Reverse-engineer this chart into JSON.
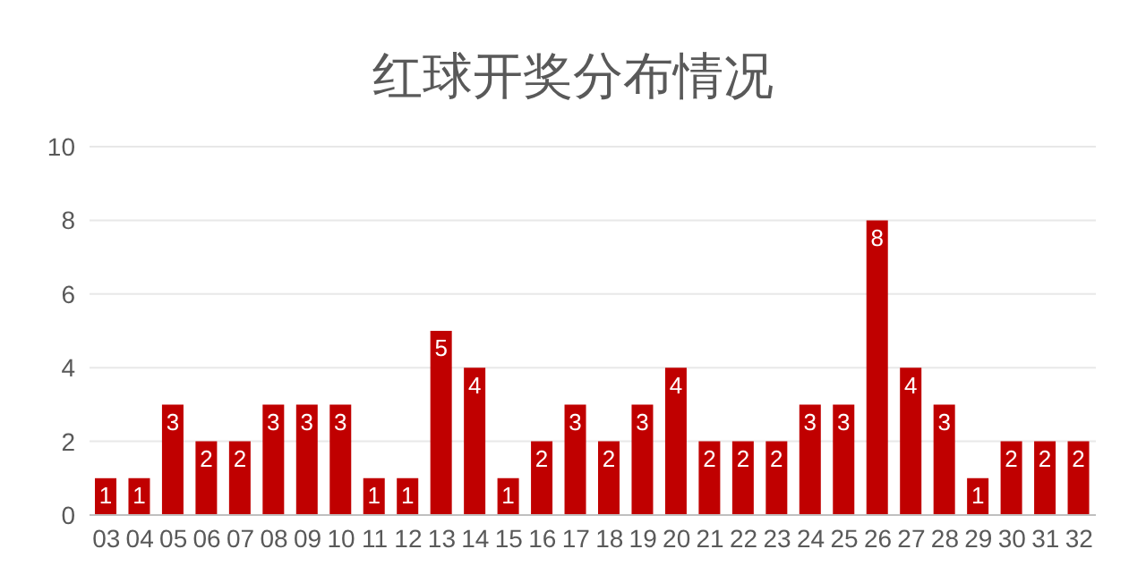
{
  "chart_data": {
    "type": "bar",
    "title": "红球开奖分布情况",
    "categories": [
      "03",
      "04",
      "05",
      "06",
      "07",
      "08",
      "09",
      "10",
      "11",
      "12",
      "13",
      "14",
      "15",
      "16",
      "17",
      "18",
      "19",
      "20",
      "21",
      "22",
      "23",
      "24",
      "25",
      "26",
      "27",
      "28",
      "29",
      "30",
      "31",
      "32"
    ],
    "values": [
      1,
      1,
      3,
      2,
      2,
      3,
      3,
      3,
      1,
      1,
      5,
      4,
      1,
      2,
      3,
      2,
      3,
      4,
      2,
      2,
      2,
      3,
      3,
      8,
      4,
      3,
      1,
      2,
      2,
      2
    ],
    "color": "#c00000",
    "ylim": [
      0,
      10
    ],
    "yticks": [
      0,
      2,
      4,
      6,
      8,
      10
    ],
    "grid": "y",
    "data_labels": true
  }
}
